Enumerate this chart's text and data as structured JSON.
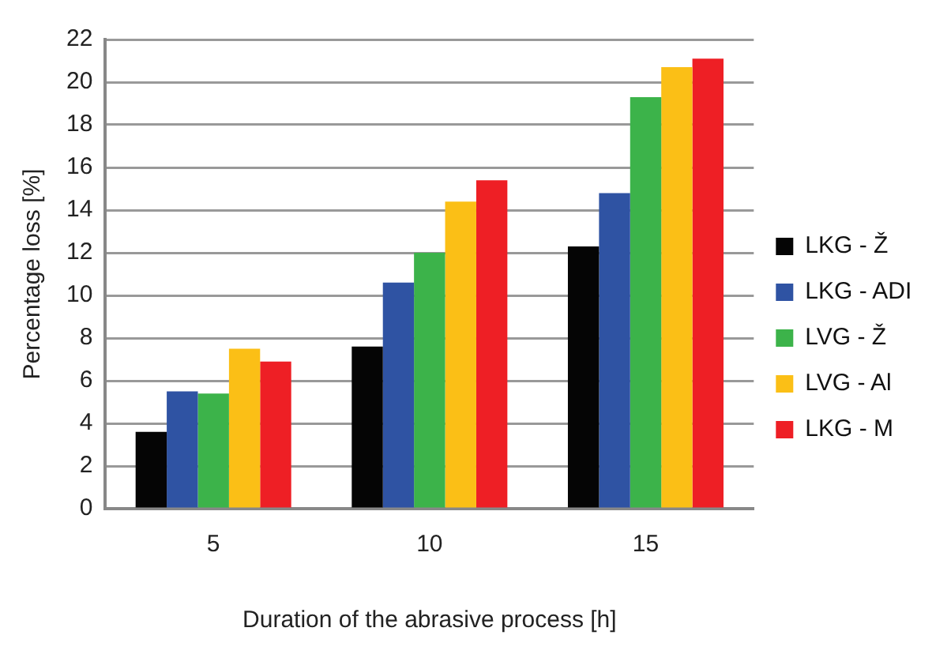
{
  "chart_data": {
    "type": "bar",
    "xlabel": "Duration of the abrasive process [h]",
    "ylabel": "Percentage loss [%]",
    "categories": [
      "5",
      "10",
      "15"
    ],
    "series": [
      {
        "name": "LKG - Ž",
        "color": "#050505",
        "values": [
          3.6,
          7.6,
          12.3
        ]
      },
      {
        "name": "LKG - ADI",
        "color": "#2f53a3",
        "values": [
          5.5,
          10.6,
          14.8
        ]
      },
      {
        "name": "LVG - Ž",
        "color": "#3cb34a",
        "values": [
          5.4,
          12.0,
          19.3
        ]
      },
      {
        "name": "LVG - Al",
        "color": "#fbbf16",
        "values": [
          7.5,
          14.4,
          20.7
        ]
      },
      {
        "name": "LKG - M",
        "color": "#ee1f25",
        "values": [
          6.9,
          15.4,
          21.1
        ]
      }
    ],
    "ylim": [
      0,
      22
    ],
    "yticks": [
      0,
      2,
      4,
      6,
      8,
      10,
      12,
      14,
      16,
      18,
      20,
      22
    ],
    "grid": "y",
    "legend": "right"
  }
}
